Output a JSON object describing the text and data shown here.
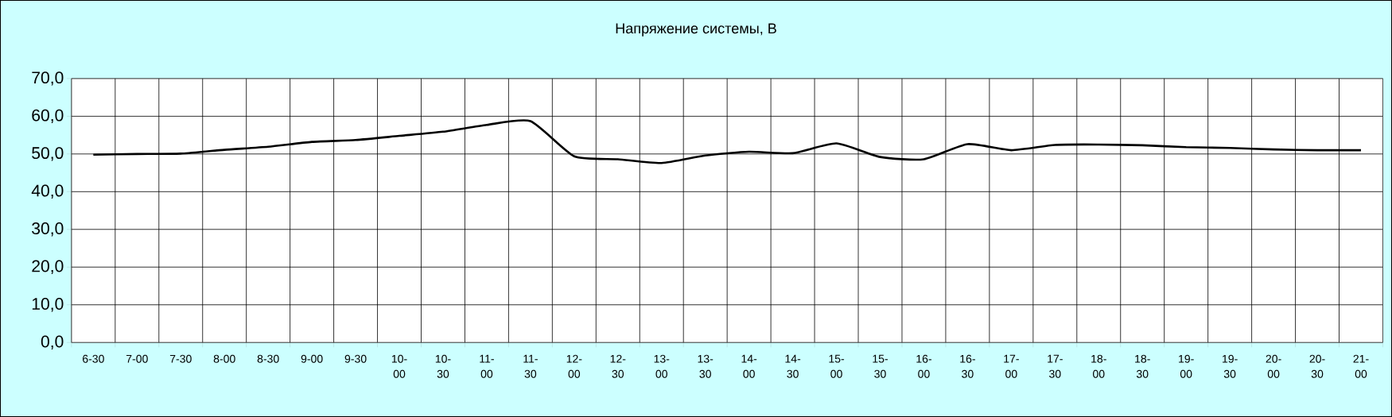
{
  "chart_data": {
    "type": "line",
    "title": "Напряжение системы, В",
    "categories": [
      "6-30",
      "7-00",
      "7-30",
      "8-00",
      "8-30",
      "9-00",
      "9-30",
      "10-00",
      "10-30",
      "11-00",
      "11-30",
      "12-00",
      "12-30",
      "13-00",
      "13-30",
      "14-00",
      "14-30",
      "15-00",
      "15-30",
      "16-00",
      "16-30",
      "17-00",
      "17-30",
      "18-00",
      "18-30",
      "19-00",
      "19-30",
      "20-00",
      "20-30",
      "21-00"
    ],
    "values": [
      49.8,
      50.0,
      50.1,
      51.1,
      51.9,
      53.2,
      53.7,
      54.8,
      55.9,
      57.7,
      58.7,
      49.4,
      48.6,
      47.6,
      49.6,
      50.6,
      50.2,
      52.8,
      49.2,
      48.6,
      52.6,
      51.0,
      52.4,
      52.5,
      52.3,
      51.8,
      51.6,
      51.2,
      51.0,
      51.0
    ],
    "color": "#000000",
    "ylim": [
      0,
      70
    ],
    "yticks": [
      {
        "value": 0,
        "label": "0,0"
      },
      {
        "value": 10,
        "label": "10,0"
      },
      {
        "value": 20,
        "label": "20,0"
      },
      {
        "value": 30,
        "label": "30,0"
      },
      {
        "value": 40,
        "label": "40,0"
      },
      {
        "value": 50,
        "label": "50,0"
      },
      {
        "value": 60,
        "label": "60,0"
      },
      {
        "value": 70,
        "label": "70,0"
      }
    ],
    "grid": true
  }
}
